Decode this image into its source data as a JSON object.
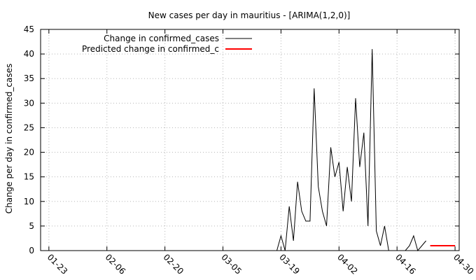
{
  "chart_data": {
    "type": "line",
    "title": "New cases per day in mauritius -  [ARIMA(1,2,0)]",
    "xlabel": "",
    "ylabel": "Change per day in confirmed_cases",
    "ylim": [
      0,
      45
    ],
    "yticks": [
      0,
      5,
      10,
      15,
      20,
      25,
      30,
      35,
      40,
      45
    ],
    "xlim": [
      "2020-01-21",
      "2020-05-01"
    ],
    "xticks": [
      "2020-01-23",
      "2020-02-06",
      "2020-02-20",
      "2020-03-05",
      "2020-03-19",
      "2020-04-02",
      "2020-04-16",
      "2020-04-30"
    ],
    "xtick_labels": [
      "01-23",
      "02-06",
      "02-20",
      "03-05",
      "03-19",
      "04-02",
      "04-16",
      "04-30"
    ],
    "grid": true,
    "legend_position": "top-left",
    "series": [
      {
        "name": "Change in confirmed_cases",
        "color": "#000000",
        "x": [
          "2020-01-23",
          "2020-01-24",
          "2020-01-25",
          "2020-01-26",
          "2020-01-27",
          "2020-01-28",
          "2020-01-29",
          "2020-01-30",
          "2020-01-31",
          "2020-02-01",
          "2020-02-02",
          "2020-02-03",
          "2020-02-04",
          "2020-02-05",
          "2020-02-06",
          "2020-02-07",
          "2020-02-08",
          "2020-02-09",
          "2020-02-10",
          "2020-02-11",
          "2020-02-12",
          "2020-02-13",
          "2020-02-14",
          "2020-02-15",
          "2020-02-16",
          "2020-02-17",
          "2020-02-18",
          "2020-02-19",
          "2020-02-20",
          "2020-02-21",
          "2020-02-22",
          "2020-02-23",
          "2020-02-24",
          "2020-02-25",
          "2020-02-26",
          "2020-02-27",
          "2020-02-28",
          "2020-02-29",
          "2020-03-01",
          "2020-03-02",
          "2020-03-03",
          "2020-03-04",
          "2020-03-05",
          "2020-03-06",
          "2020-03-07",
          "2020-03-08",
          "2020-03-09",
          "2020-03-10",
          "2020-03-11",
          "2020-03-12",
          "2020-03-13",
          "2020-03-14",
          "2020-03-15",
          "2020-03-16",
          "2020-03-17",
          "2020-03-18",
          "2020-03-19",
          "2020-03-20",
          "2020-03-21",
          "2020-03-22",
          "2020-03-23",
          "2020-03-24",
          "2020-03-25",
          "2020-03-26",
          "2020-03-27",
          "2020-03-28",
          "2020-03-29",
          "2020-03-30",
          "2020-03-31",
          "2020-04-01",
          "2020-04-02",
          "2020-04-03",
          "2020-04-04",
          "2020-04-05",
          "2020-04-06",
          "2020-04-07",
          "2020-04-08",
          "2020-04-09",
          "2020-04-10",
          "2020-04-11",
          "2020-04-12",
          "2020-04-13",
          "2020-04-14",
          "2020-04-15",
          "2020-04-16",
          "2020-04-17",
          "2020-04-18",
          "2020-04-19",
          "2020-04-20",
          "2020-04-21",
          "2020-04-22",
          "2020-04-23"
        ],
        "values": [
          0,
          0,
          0,
          0,
          0,
          0,
          0,
          0,
          0,
          0,
          0,
          0,
          0,
          0,
          0,
          0,
          0,
          0,
          0,
          0,
          0,
          0,
          0,
          0,
          0,
          0,
          0,
          0,
          0,
          0,
          0,
          0,
          0,
          0,
          0,
          0,
          0,
          0,
          0,
          0,
          0,
          0,
          0,
          0,
          0,
          0,
          0,
          0,
          0,
          0,
          0,
          0,
          0,
          0,
          0,
          0,
          3,
          0,
          9,
          2,
          14,
          8,
          6,
          6,
          33,
          13,
          8,
          5,
          21,
          15,
          18,
          8,
          17,
          10,
          31,
          17,
          24,
          5,
          41,
          4,
          1,
          5,
          0,
          0,
          0,
          0,
          0,
          1,
          3,
          0,
          1,
          2
        ]
      },
      {
        "name": "Predicted change in confirmed_c",
        "color": "#ff0000",
        "x": [
          "2020-04-24",
          "2020-04-30"
        ],
        "values": [
          1,
          1
        ]
      }
    ]
  }
}
